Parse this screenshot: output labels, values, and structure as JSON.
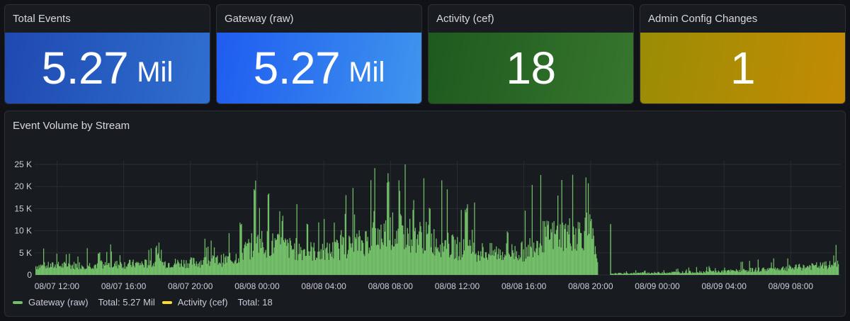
{
  "stats": [
    {
      "title": "Total Events",
      "value": "5.27",
      "unit": "Mil"
    },
    {
      "title": "Gateway (raw)",
      "value": "5.27",
      "unit": "Mil"
    },
    {
      "title": "Activity (cef)",
      "value": "18",
      "unit": ""
    },
    {
      "title": "Admin Config Changes",
      "value": "1",
      "unit": ""
    }
  ],
  "colors": {
    "gateway_series": "#73bf69",
    "activity_series": "#fade2a"
  },
  "chart_data": {
    "type": "bar",
    "title": "Event Volume by Stream",
    "xlabel": "",
    "ylabel": "",
    "ylim": [
      0,
      25000
    ],
    "y_ticks": [
      "0",
      "5 K",
      "10 K",
      "15 K",
      "20 K",
      "25 K"
    ],
    "x_range": [
      "2025-08-07 10:40",
      "2025-08-09 11:00"
    ],
    "x_tick_labels": [
      "08/07 12:00",
      "08/07 16:00",
      "08/07 20:00",
      "08/08 00:00",
      "08/08 04:00",
      "08/08 08:00",
      "08/08 12:00",
      "08/08 16:00",
      "08/08 20:00",
      "08/09 00:00",
      "08/09 04:00",
      "08/09 08:00"
    ],
    "grid": true,
    "legend_position": "bottom-left",
    "series": [
      {
        "name": "Gateway (raw)",
        "total_label": "Total: 5.27 Mil",
        "profile": [
          {
            "x": "2025-08-07 10:40",
            "y": 2000
          },
          {
            "x": "2025-08-07 16:00",
            "y": 2400
          },
          {
            "x": "2025-08-07 20:00",
            "y": 2800
          },
          {
            "x": "2025-08-07 22:30",
            "y": 3500
          },
          {
            "x": "2025-08-08 00:00",
            "y": 7500
          },
          {
            "x": "2025-08-08 02:00",
            "y": 6000
          },
          {
            "x": "2025-08-08 04:00",
            "y": 5000
          },
          {
            "x": "2025-08-08 06:00",
            "y": 7000
          },
          {
            "x": "2025-08-08 08:00",
            "y": 10000
          },
          {
            "x": "2025-08-08 10:00",
            "y": 8500
          },
          {
            "x": "2025-08-08 12:00",
            "y": 6000
          },
          {
            "x": "2025-08-08 14:00",
            "y": 5000
          },
          {
            "x": "2025-08-08 16:00",
            "y": 5300
          },
          {
            "x": "2025-08-08 17:00",
            "y": 8500
          },
          {
            "x": "2025-08-08 19:00",
            "y": 9500
          },
          {
            "x": "2025-08-08 20:00",
            "y": 9800
          },
          {
            "x": "2025-08-08 20:30",
            "y": 0
          },
          {
            "x": "2025-08-08 21:00",
            "y": 300
          },
          {
            "x": "2025-08-09 00:00",
            "y": 500
          },
          {
            "x": "2025-08-09 04:00",
            "y": 800
          },
          {
            "x": "2025-08-09 08:00",
            "y": 1600
          },
          {
            "x": "2025-08-09 11:00",
            "y": 2400
          }
        ],
        "peaks": [
          {
            "x": "2025-08-07 14:30",
            "y": 5300
          },
          {
            "x": "2025-08-07 18:00",
            "y": 5000
          },
          {
            "x": "2025-08-07 23:00",
            "y": 13000
          },
          {
            "x": "2025-08-07 23:50",
            "y": 22000
          },
          {
            "x": "2025-08-08 00:40",
            "y": 18500
          },
          {
            "x": "2025-08-08 01:30",
            "y": 14000
          },
          {
            "x": "2025-08-08 03:00",
            "y": 13000
          },
          {
            "x": "2025-08-08 05:00",
            "y": 10500
          },
          {
            "x": "2025-08-08 07:00",
            "y": 14500
          },
          {
            "x": "2025-08-08 07:50",
            "y": 24500
          },
          {
            "x": "2025-08-08 08:30",
            "y": 21500
          },
          {
            "x": "2025-08-08 09:20",
            "y": 17000
          },
          {
            "x": "2025-08-08 10:20",
            "y": 15800
          },
          {
            "x": "2025-08-08 12:30",
            "y": 16500
          },
          {
            "x": "2025-08-08 15:00",
            "y": 11000
          },
          {
            "x": "2025-08-08 20:50",
            "y": 11500
          }
        ]
      },
      {
        "name": "Activity (cef)",
        "total_label": "Total: 18",
        "values": []
      }
    ]
  }
}
